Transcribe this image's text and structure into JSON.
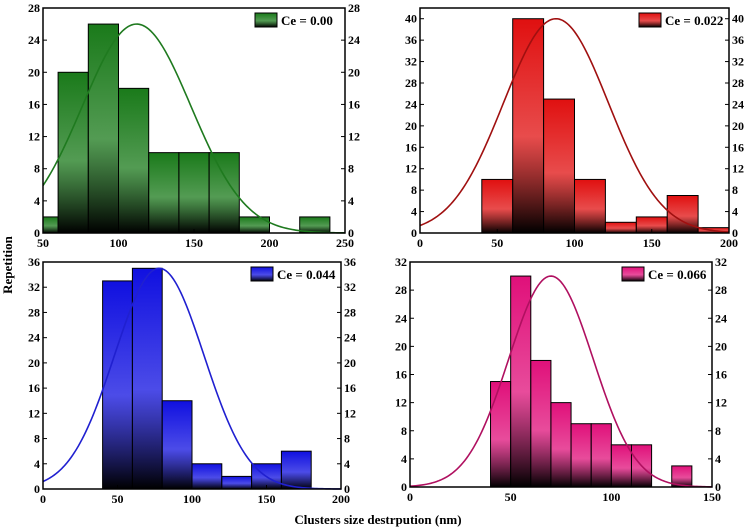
{
  "figure": {
    "xlabel": "Clusters size destrpution (nm)",
    "ylabel": "Repetition"
  },
  "chart_data": [
    {
      "id": "panel-ce-000",
      "type": "bar",
      "legend": "Ce = 0.00",
      "legend_position": "top-right",
      "color": "#1a7a1a",
      "curve_color": "#1f7a1f",
      "xlim": [
        50,
        250
      ],
      "xticks": [
        50,
        100,
        150,
        200,
        250
      ],
      "ylim": [
        0,
        28
      ],
      "yticks": [
        0,
        4,
        8,
        12,
        16,
        20,
        24,
        28
      ],
      "bins": [
        {
          "start": 50,
          "end": 60,
          "value": 2
        },
        {
          "start": 60,
          "end": 80,
          "value": 20
        },
        {
          "start": 80,
          "end": 100,
          "value": 26
        },
        {
          "start": 100,
          "end": 120,
          "value": 18
        },
        {
          "start": 120,
          "end": 140,
          "value": 10
        },
        {
          "start": 140,
          "end": 160,
          "value": 10
        },
        {
          "start": 160,
          "end": 180,
          "value": 10
        },
        {
          "start": 180,
          "end": 200,
          "value": 2
        },
        {
          "start": 200,
          "end": 220,
          "value": 0
        },
        {
          "start": 220,
          "end": 240,
          "value": 2
        }
      ],
      "fit": {
        "mean": 112,
        "sd": 36,
        "peak": 26
      }
    },
    {
      "id": "panel-ce-022",
      "type": "bar",
      "legend": "Ce = 0.022",
      "legend_position": "top-right",
      "color": "#e01010",
      "curve_color": "#a01010",
      "xlim": [
        0,
        200
      ],
      "xticks": [
        0,
        50,
        100,
        150,
        200
      ],
      "ylim": [
        0,
        42
      ],
      "yticks": [
        0,
        4,
        8,
        12,
        16,
        20,
        24,
        28,
        32,
        36,
        40
      ],
      "bins": [
        {
          "start": 40,
          "end": 60,
          "value": 10
        },
        {
          "start": 60,
          "end": 80,
          "value": 40
        },
        {
          "start": 80,
          "end": 100,
          "value": 25
        },
        {
          "start": 100,
          "end": 120,
          "value": 10
        },
        {
          "start": 120,
          "end": 140,
          "value": 2
        },
        {
          "start": 140,
          "end": 160,
          "value": 3
        },
        {
          "start": 160,
          "end": 180,
          "value": 7
        },
        {
          "start": 180,
          "end": 200,
          "value": 1
        }
      ],
      "fit": {
        "mean": 88,
        "sd": 34,
        "peak": 40
      }
    },
    {
      "id": "panel-ce-044",
      "type": "bar",
      "legend": "Ce = 0.044",
      "legend_position": "top-right",
      "color": "#1010e0",
      "curve_color": "#2020d0",
      "xlim": [
        0,
        200
      ],
      "xticks": [
        0,
        50,
        100,
        150,
        200
      ],
      "ylim": [
        0,
        36
      ],
      "yticks": [
        0,
        4,
        8,
        12,
        16,
        20,
        24,
        28,
        32,
        36
      ],
      "bins": [
        {
          "start": 40,
          "end": 60,
          "value": 33
        },
        {
          "start": 60,
          "end": 80,
          "value": 35
        },
        {
          "start": 80,
          "end": 100,
          "value": 14
        },
        {
          "start": 100,
          "end": 120,
          "value": 4
        },
        {
          "start": 120,
          "end": 140,
          "value": 2
        },
        {
          "start": 140,
          "end": 160,
          "value": 4
        },
        {
          "start": 160,
          "end": 180,
          "value": 6
        }
      ],
      "fit": {
        "mean": 78,
        "sd": 30,
        "peak": 35
      }
    },
    {
      "id": "panel-ce-066",
      "type": "bar",
      "legend": "Ce = 0.066",
      "legend_position": "top-right",
      "color": "#e0107a",
      "curve_color": "#b01060",
      "xlim": [
        0,
        150
      ],
      "xticks": [
        0,
        50,
        100,
        150
      ],
      "ylim": [
        0,
        32
      ],
      "yticks": [
        0,
        4,
        8,
        12,
        16,
        20,
        24,
        28,
        32
      ],
      "bins": [
        {
          "start": 40,
          "end": 50,
          "value": 15
        },
        {
          "start": 50,
          "end": 60,
          "value": 30
        },
        {
          "start": 60,
          "end": 70,
          "value": 18
        },
        {
          "start": 70,
          "end": 80,
          "value": 12
        },
        {
          "start": 80,
          "end": 90,
          "value": 9
        },
        {
          "start": 90,
          "end": 100,
          "value": 9
        },
        {
          "start": 100,
          "end": 110,
          "value": 6
        },
        {
          "start": 110,
          "end": 120,
          "value": 6
        },
        {
          "start": 130,
          "end": 140,
          "value": 3
        }
      ],
      "fit": {
        "mean": 70,
        "sd": 21,
        "peak": 30
      }
    }
  ]
}
